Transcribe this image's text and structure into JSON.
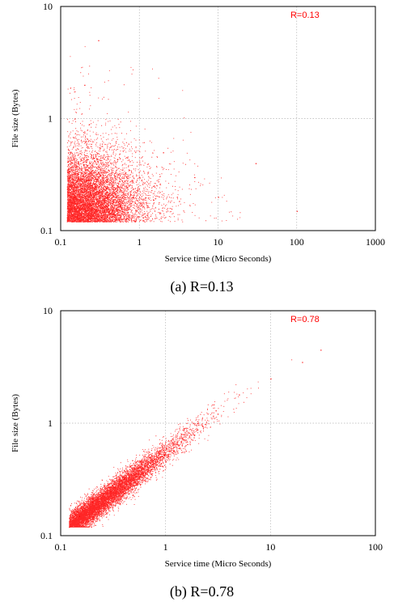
{
  "chart_data": [
    {
      "type": "scatter",
      "caption": "(a) R=0.13",
      "annotation": "R=0.13",
      "xlabel": "Service time (Micro Seconds)",
      "ylabel": "File size (Bytes)",
      "x_scale": "log",
      "y_scale": "log",
      "xlim": [
        0.1,
        1000
      ],
      "ylim": [
        0.1,
        10
      ],
      "xticks": [
        "0.1",
        "1",
        "10",
        "100",
        "1000"
      ],
      "yticks": [
        "0.1",
        "1",
        "10"
      ],
      "grid": true,
      "color": "#ff0000",
      "series": [
        {
          "correlation": 0.13,
          "points_sample": [
            [
              0.12,
              0.13
            ],
            [
              0.15,
              0.2
            ],
            [
              0.2,
              0.25
            ],
            [
              0.25,
              0.3
            ],
            [
              0.3,
              0.22
            ],
            [
              0.4,
              0.35
            ],
            [
              0.5,
              0.18
            ],
            [
              0.7,
              0.45
            ],
            [
              1.0,
              0.3
            ],
            [
              1.5,
              0.25
            ],
            [
              2.0,
              0.5
            ],
            [
              3.0,
              0.2
            ],
            [
              5.0,
              0.3
            ],
            [
              10,
              0.2
            ],
            [
              30,
              0.4
            ],
            [
              100,
              0.15
            ],
            [
              0.15,
              1.0
            ],
            [
              0.2,
              2.0
            ],
            [
              0.3,
              5.0
            ]
          ]
        }
      ]
    },
    {
      "type": "scatter",
      "caption": "(b) R=0.78",
      "annotation": "R=0.78",
      "xlabel": "Service time (Micro Seconds)",
      "ylabel": "File size (Bytes)",
      "x_scale": "log",
      "y_scale": "log",
      "xlim": [
        0.1,
        100
      ],
      "ylim": [
        0.1,
        10
      ],
      "xticks": [
        "0.1",
        "1",
        "10",
        "100"
      ],
      "yticks": [
        "0.1",
        "1",
        "10"
      ],
      "grid": true,
      "color": "#ff0000",
      "series": [
        {
          "correlation": 0.78,
          "points_sample": [
            [
              0.12,
              0.12
            ],
            [
              0.15,
              0.15
            ],
            [
              0.2,
              0.2
            ],
            [
              0.3,
              0.25
            ],
            [
              0.4,
              0.32
            ],
            [
              0.5,
              0.4
            ],
            [
              0.7,
              0.5
            ],
            [
              1.0,
              0.6
            ],
            [
              1.5,
              0.8
            ],
            [
              2.0,
              1.0
            ],
            [
              3.0,
              1.3
            ],
            [
              5.0,
              1.8
            ],
            [
              10,
              2.5
            ],
            [
              20,
              3.5
            ],
            [
              30,
              4.5
            ]
          ]
        }
      ]
    }
  ]
}
